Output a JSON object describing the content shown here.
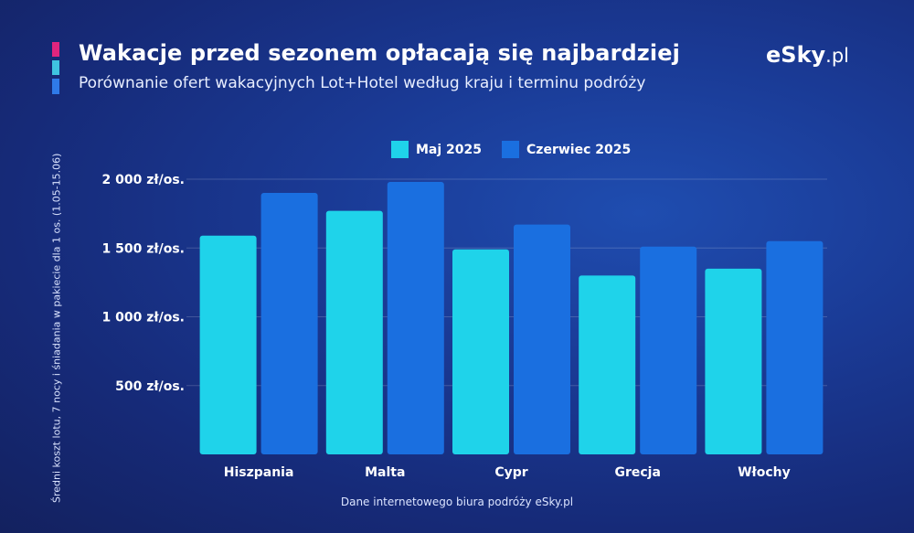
{
  "header": {
    "title": "Wakacje przed sezonem opłacają się najbardziej",
    "subtitle": "Porównanie ofert wakacyjnych Lot+Hotel według kraju i terminu podróży",
    "logo_main": "eSky",
    "logo_suffix": ".pl"
  },
  "footer": {
    "source": "Dane internetowego biura podróży eSky.pl"
  },
  "colors": {
    "accent_pink": "#e0257e",
    "accent_cyan": "#3fc4e0",
    "accent_blue": "#2f7ae8",
    "series_maj": "#1fd3ea",
    "series_czerwiec": "#1a6fe0"
  },
  "chart_data": {
    "type": "bar",
    "categories": [
      "Hiszpania",
      "Malta",
      "Cypr",
      "Grecja",
      "Włochy"
    ],
    "series": [
      {
        "name": "Maj 2025",
        "color": "#1fd3ea",
        "values": [
          1590,
          1770,
          1490,
          1300,
          1350
        ]
      },
      {
        "name": "Czerwiec 2025",
        "color": "#1a6fe0",
        "values": [
          1900,
          1980,
          1670,
          1510,
          1550
        ]
      }
    ],
    "title": "Wakacje przed sezonem opłacają się najbardziej",
    "subtitle": "Porównanie ofert wakacyjnych Lot+Hotel według kraju i terminu podróży",
    "ylabel": "Średni koszt lotu, 7 nocy i śniadania w pakiecie dla 1 os. (1.05-15.06)",
    "xlabel": "",
    "ylim": [
      0,
      2000
    ],
    "yticks": [
      {
        "value": 500,
        "label": "500 zł/os."
      },
      {
        "value": 1000,
        "label": "1 000 zł/os."
      },
      {
        "value": 1500,
        "label": "1 500 zł/os."
      },
      {
        "value": 2000,
        "label": "2 000 zł/os."
      }
    ],
    "grid": true,
    "legend": "top-center"
  }
}
